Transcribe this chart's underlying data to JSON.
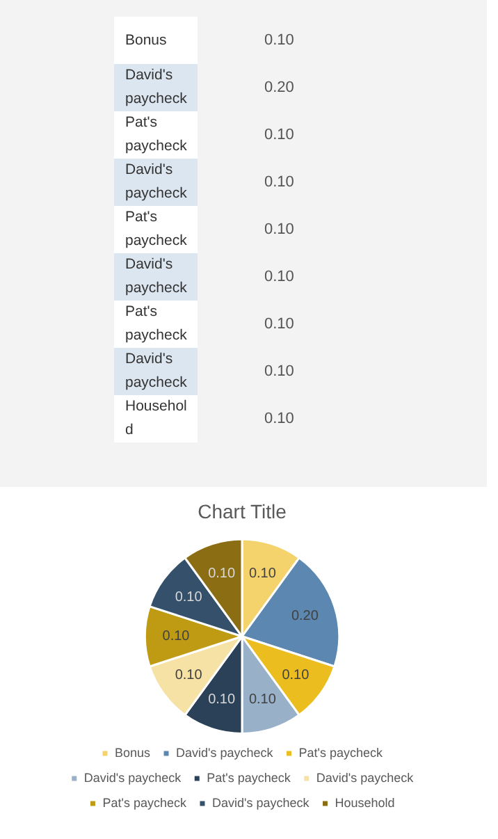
{
  "chart_data": {
    "type": "pie",
    "title": "Chart Title",
    "categories": [
      "Bonus",
      "David's paycheck",
      "Pat's paycheck",
      "David's paycheck",
      "Pat's paycheck",
      "David's paycheck",
      "Pat's paycheck",
      "David's paycheck",
      "Household"
    ],
    "values": [
      0.1,
      0.2,
      0.1,
      0.1,
      0.1,
      0.1,
      0.1,
      0.1,
      0.1
    ],
    "value_labels": [
      "0.10",
      "0.20",
      "0.10",
      "0.10",
      "0.10",
      "0.10",
      "0.10",
      "0.10",
      "0.10"
    ],
    "colors": [
      "#f5d36c",
      "#5b87b0",
      "#ebbd1f",
      "#98b0c8",
      "#2a4158",
      "#f6e2a4",
      "#bf9b14",
      "#34506a",
      "#8b6e13"
    ],
    "legend": "bottom"
  }
}
